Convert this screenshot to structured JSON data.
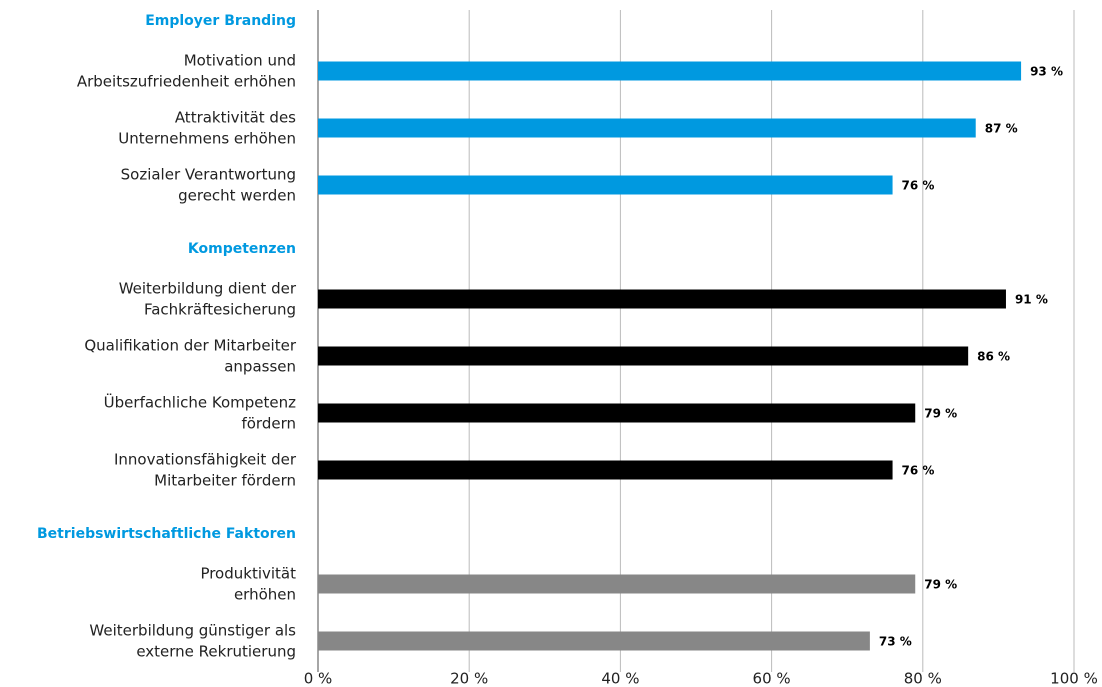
{
  "chart_data": {
    "type": "bar",
    "orientation": "horizontal",
    "groups": [
      {
        "name": "Employer Branding",
        "color": "#0099e0",
        "categories": [
          [
            "Motivation und",
            "Arbeitszufriedenheit erhöhen"
          ],
          [
            "Attraktivität des",
            "Unternehmens erhöhen"
          ],
          [
            "Sozialer Verantwortung",
            "gerecht werden"
          ]
        ],
        "values": [
          93,
          87,
          76
        ],
        "value_labels": [
          "93 %",
          "87 %",
          "76 %"
        ]
      },
      {
        "name": "Kompetenzen",
        "color": "#000000",
        "categories": [
          [
            "Weiterbildung dient der",
            "Fachkräftesicherung"
          ],
          [
            "Qualifikation der Mitarbeiter",
            "anpassen"
          ],
          [
            "Überfachliche Kompetenz",
            "fördern"
          ],
          [
            "Innovationsfähigkeit der",
            "Mitarbeiter fördern"
          ]
        ],
        "values": [
          91,
          86,
          79,
          76
        ],
        "value_labels": [
          "91 %",
          "86 %",
          "79 %",
          "76 %"
        ]
      },
      {
        "name": "Betriebswirtschaftliche Faktoren",
        "color": "#878787",
        "categories": [
          [
            "Produktivität",
            "erhöhen"
          ],
          [
            "Weiterbildung günstiger als",
            "externe Rekrutierung"
          ]
        ],
        "values": [
          79,
          73
        ],
        "value_labels": [
          "79 %",
          "73 %"
        ]
      }
    ],
    "header_color": "#0099e0",
    "xlim": [
      0,
      100
    ],
    "xticks": [
      {
        "value": 0,
        "label": "0 %"
      },
      {
        "value": 20,
        "label": "20 %"
      },
      {
        "value": 40,
        "label": "40 %"
      },
      {
        "value": 60,
        "label": "60 %"
      },
      {
        "value": 80,
        "label": "80 %"
      },
      {
        "value": 100,
        "label": "100 %"
      }
    ],
    "grid": true
  }
}
